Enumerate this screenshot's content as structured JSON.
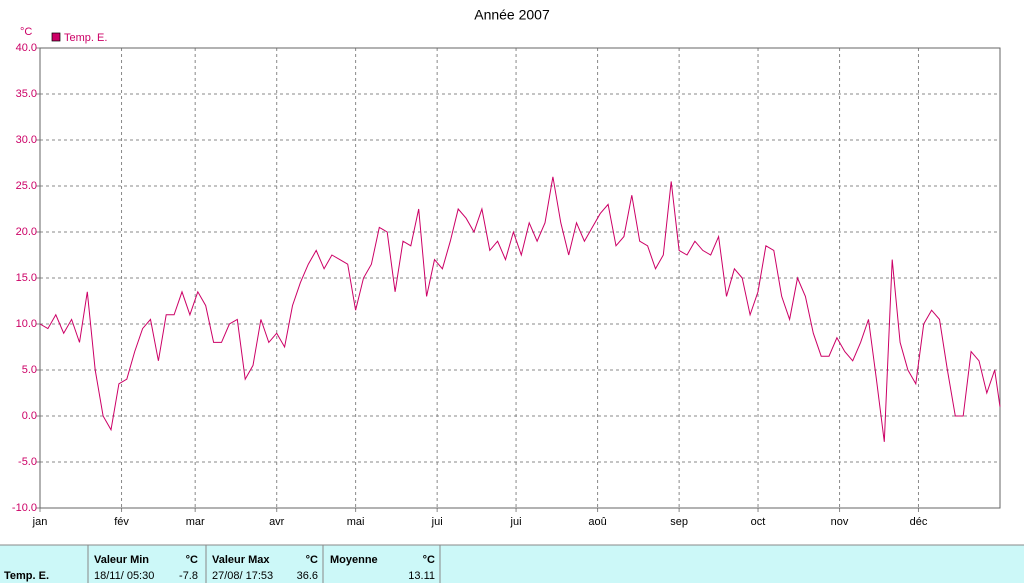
{
  "chart_data": {
    "type": "line",
    "title": "Année 2007",
    "y_label": "°C",
    "x": [
      0,
      3,
      6,
      9,
      12,
      15,
      18,
      21,
      24,
      27,
      30,
      33,
      36,
      39,
      42,
      45,
      48,
      51,
      54,
      57,
      60,
      63,
      66,
      69,
      72,
      75,
      78,
      81,
      84,
      87,
      90,
      93,
      96,
      99,
      102,
      105,
      108,
      111,
      114,
      117,
      120,
      123,
      126,
      129,
      132,
      135,
      138,
      141,
      144,
      147,
      150,
      153,
      156,
      159,
      162,
      165,
      168,
      171,
      174,
      177,
      180,
      183,
      186,
      189,
      192,
      195,
      198,
      201,
      204,
      207,
      210,
      213,
      216,
      219,
      222,
      225,
      228,
      231,
      234,
      237,
      240,
      243,
      246,
      249,
      252,
      255,
      258,
      261,
      264,
      267,
      270,
      273,
      276,
      279,
      282,
      285,
      288,
      291,
      294,
      297,
      300,
      303,
      306,
      309,
      312,
      315,
      318,
      321,
      324,
      327,
      330,
      333,
      336,
      339,
      342,
      345,
      348,
      351,
      354,
      357,
      360,
      363,
      365
    ],
    "series": [
      {
        "name": "Temp. E.",
        "color": "#cc0066",
        "values": [
          10,
          9.5,
          11,
          9,
          10.5,
          8,
          13.5,
          5,
          0,
          -1.5,
          3.5,
          4,
          7,
          9.5,
          10.5,
          6,
          11,
          11,
          13.5,
          11,
          13.5,
          12,
          8,
          8,
          10,
          10.5,
          4,
          5.5,
          10.5,
          8,
          9,
          7.5,
          12,
          14.5,
          16.5,
          18,
          16,
          17.5,
          17,
          16.5,
          11.5,
          15,
          16.5,
          20.5,
          20,
          13.5,
          19,
          18.5,
          22.5,
          13,
          17,
          16,
          19,
          22.5,
          21.5,
          20,
          22.5,
          18,
          19,
          17,
          20,
          17.5,
          21,
          19,
          21,
          26,
          21,
          17.5,
          21,
          19,
          20.5,
          22,
          23,
          18.5,
          19.5,
          24,
          19,
          18.5,
          16,
          17.5,
          25.5,
          18,
          17.5,
          19,
          18,
          17.5,
          19.5,
          13,
          16,
          15,
          11,
          13.5,
          18.5,
          18,
          13,
          10.5,
          15,
          13,
          9,
          6.5,
          6.5,
          8.5,
          7,
          6,
          8,
          10.5,
          4,
          -2.8,
          17,
          8,
          5,
          3.5,
          10,
          11.5,
          10.5,
          5,
          0,
          0,
          7,
          6,
          2.5,
          5,
          1
        ]
      }
    ],
    "xlim": [
      0,
      365
    ],
    "xticks": [
      {
        "value": 0,
        "label": "jan"
      },
      {
        "value": 31,
        "label": "fév"
      },
      {
        "value": 59,
        "label": "mar"
      },
      {
        "value": 90,
        "label": "avr"
      },
      {
        "value": 120,
        "label": "mai"
      },
      {
        "value": 151,
        "label": "jui"
      },
      {
        "value": 181,
        "label": "jui"
      },
      {
        "value": 212,
        "label": "aoû"
      },
      {
        "value": 243,
        "label": "sep"
      },
      {
        "value": 273,
        "label": "oct"
      },
      {
        "value": 304,
        "label": "nov"
      },
      {
        "value": 334,
        "label": "déc"
      }
    ],
    "ylim": [
      -10,
      40
    ],
    "yticks": [
      {
        "value": -10,
        "label": "-10.0"
      },
      {
        "value": -5,
        "label": "-5.0"
      },
      {
        "value": 0,
        "label": "0.0"
      },
      {
        "value": 5,
        "label": "5.0"
      },
      {
        "value": 10,
        "label": "10.0"
      },
      {
        "value": 15,
        "label": "15.0"
      },
      {
        "value": 20,
        "label": "20.0"
      },
      {
        "value": 25,
        "label": "25.0"
      },
      {
        "value": 30,
        "label": "30.0"
      },
      {
        "value": 35,
        "label": "35.0"
      },
      {
        "value": 40,
        "label": "40.0"
      }
    ],
    "grid": true,
    "legend": "top-left"
  },
  "table": {
    "header": [
      "Valeur Min",
      "°C",
      "Valeur Max",
      "°C",
      "Moyenne",
      "°C"
    ],
    "rows": [
      [
        "Temp. E.",
        "18/11/ 05:30",
        "-7.8",
        "27/08/ 17:53",
        "36.6",
        "13.11"
      ]
    ]
  }
}
